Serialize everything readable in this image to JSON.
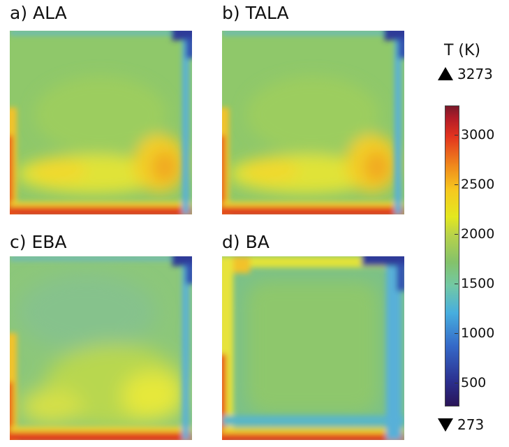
{
  "panels": [
    {
      "id": "a",
      "title": "a) ALA"
    },
    {
      "id": "b",
      "title": "b) TALA"
    },
    {
      "id": "c",
      "title": "c) EBA"
    },
    {
      "id": "d",
      "title": "d) BA"
    }
  ],
  "colorbar": {
    "title": "T (K)",
    "max_label": "3273",
    "min_label": "273",
    "ticks": [
      "3000",
      "2500",
      "2000",
      "1500",
      "1000",
      "500"
    ],
    "colors": {
      "cold": "#2a1458",
      "blue": "#3569c8",
      "cyan": "#47aede",
      "green": "#84c26a",
      "yellow": "#e3e81f",
      "orange": "#f08a1c",
      "red": "#e2331f",
      "hot": "#7a1a2a"
    }
  }
}
